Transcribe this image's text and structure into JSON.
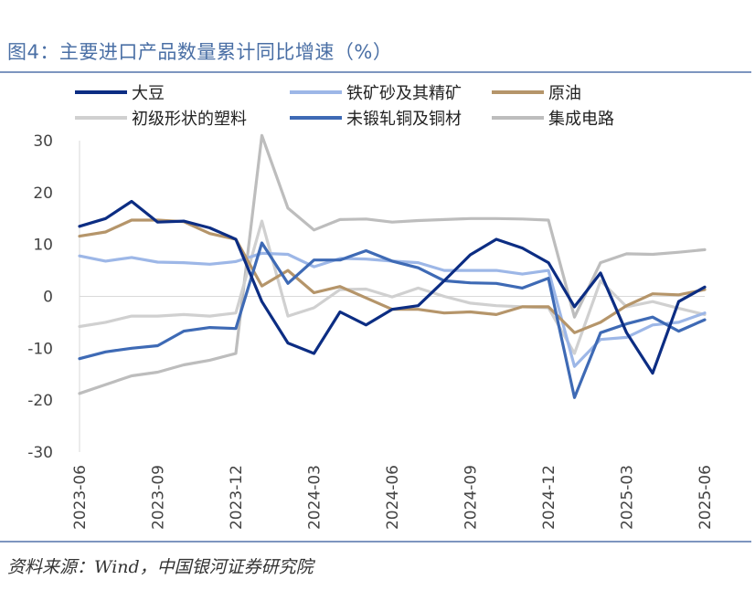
{
  "title": "图4：主要进口产品数量累计同比增速（%）",
  "source": "资料来源：Wind，中国银河证券研究院",
  "chart_data": {
    "type": "line",
    "ylim": [
      -30,
      30
    ],
    "yticks": [
      30,
      20,
      10,
      0,
      -10,
      -20,
      -30
    ],
    "xtick_labels": [
      "2023-06",
      "2023-09",
      "2023-12",
      "2024-03",
      "2024-06",
      "2024-09",
      "2024-12",
      "2025-03",
      "2025-06"
    ],
    "x": [
      "2023-06",
      "2023-07",
      "2023-08",
      "2023-09",
      "2023-10",
      "2023-11",
      "2023-12",
      "2024-01",
      "2024-02",
      "2024-03",
      "2024-04",
      "2024-05",
      "2024-06",
      "2024-07",
      "2024-08",
      "2024-09",
      "2024-10",
      "2024-11",
      "2024-12",
      "2025-01",
      "2025-02",
      "2025-03",
      "2025-04",
      "2025-05",
      "2025-06"
    ],
    "legend_position": "top",
    "series": [
      {
        "name": "大豆",
        "color": "#0c2d83",
        "values": [
          13.5,
          15,
          18.3,
          14.3,
          14.5,
          13.2,
          11,
          -1,
          -9,
          -11,
          -3,
          -5.5,
          -2.5,
          -1.8,
          3,
          8,
          11,
          9.3,
          6.5,
          -2,
          4.5,
          -7,
          -14.8,
          -1,
          1.8
        ]
      },
      {
        "name": "铁矿砂及其精矿",
        "color": "#9db7e7",
        "values": [
          7.8,
          6.8,
          7.5,
          6.6,
          6.5,
          6.2,
          6.7,
          8.3,
          8.1,
          5.7,
          7.3,
          7.2,
          6.8,
          6.5,
          5,
          5,
          5,
          4.3,
          5,
          -13.5,
          -8.3,
          -7.9,
          -5.5,
          -5,
          -3.2
        ]
      },
      {
        "name": "原油",
        "color": "#b5956a",
        "values": [
          11.6,
          12.4,
          14.7,
          14.7,
          14.4,
          12.1,
          11,
          2,
          5,
          0.7,
          1.9,
          -0.3,
          -2.5,
          -2.5,
          -3.2,
          -3,
          -3.5,
          -2,
          -2,
          -7,
          -5,
          -1.8,
          0.5,
          0.3,
          1.3
        ]
      },
      {
        "name": "初级形状的塑料",
        "color": "#d0d0d0",
        "values": [
          -5.8,
          -5,
          -3.8,
          -3.8,
          -3.5,
          -3.8,
          -3.2,
          14.5,
          -3.8,
          -2.2,
          1.3,
          1.4,
          -0.1,
          1.6,
          0,
          -1.3,
          -1.8,
          -2,
          -2.2,
          -11,
          3,
          -2,
          -1,
          -2.3,
          -3.5
        ]
      },
      {
        "name": "未锻轧铜及铜材",
        "color": "#3e6ab5",
        "values": [
          -12,
          -10.7,
          -10,
          -9.5,
          -6.7,
          -6,
          -6.2,
          10.3,
          2.5,
          7,
          7,
          8.8,
          6.8,
          5.5,
          3,
          2.6,
          2.5,
          1.6,
          3.5,
          -19.5,
          -7,
          -5.3,
          -4,
          -6.7,
          -4.5
        ]
      },
      {
        "name": "集成电路",
        "color": "#bdbdbd",
        "values": [
          -18.7,
          -17,
          -15.3,
          -14.6,
          -13.2,
          -12.3,
          -11,
          31,
          17,
          12.8,
          14.8,
          14.9,
          14.3,
          14.6,
          14.8,
          15,
          15,
          14.9,
          14.7,
          -4,
          6.5,
          8.2,
          8.1,
          8.5,
          9
        ]
      }
    ]
  }
}
